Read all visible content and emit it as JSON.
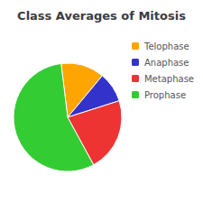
{
  "chart_data": {
    "type": "pie",
    "title": "Class Averages of Mitosis",
    "categories": [
      "Telophase",
      "Anaphase",
      "Metaphase",
      "Prophase"
    ],
    "values": [
      13,
      9,
      22,
      56
    ],
    "colors": [
      "#FFA500",
      "#3333CC",
      "#EE3333",
      "#33CC33"
    ],
    "legend": "upper right"
  }
}
